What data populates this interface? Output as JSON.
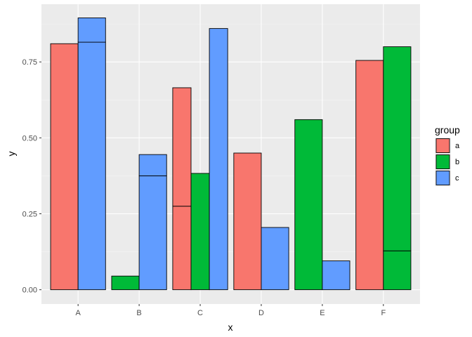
{
  "chart_data": {
    "type": "bar",
    "position": "dodge",
    "categories": [
      "A",
      "B",
      "C",
      "D",
      "E",
      "F"
    ],
    "xlabel": "x",
    "ylabel": "y",
    "ylim": [
      -0.0,
      0.94
    ],
    "yticks": [
      0.0,
      0.25,
      0.5,
      0.75
    ],
    "ytick_labels": [
      "0.00",
      "0.25",
      "0.50",
      "0.75"
    ],
    "grid": true,
    "legend": {
      "title": "group",
      "placement": "right",
      "entries": [
        {
          "label": "a",
          "color": "#F8766D"
        },
        {
          "label": "b",
          "color": "#00BA38"
        },
        {
          "label": "c",
          "color": "#619CFF"
        }
      ]
    },
    "bars": [
      {
        "category": "A",
        "groups_present": [
          "a",
          "c"
        ],
        "group": "a",
        "segments": [
          0.81
        ]
      },
      {
        "category": "A",
        "groups_present": [
          "a",
          "c"
        ],
        "group": "c",
        "segments": [
          0.815,
          0.08
        ]
      },
      {
        "category": "B",
        "groups_present": [
          "b",
          "c"
        ],
        "group": "b",
        "segments": [
          0.045
        ]
      },
      {
        "category": "B",
        "groups_present": [
          "b",
          "c"
        ],
        "group": "c",
        "segments": [
          0.375,
          0.07
        ]
      },
      {
        "category": "C",
        "groups_present": [
          "a",
          "b",
          "c"
        ],
        "group": "a",
        "segments": [
          0.275,
          0.39
        ]
      },
      {
        "category": "C",
        "groups_present": [
          "a",
          "b",
          "c"
        ],
        "group": "b",
        "segments": [
          0.383
        ]
      },
      {
        "category": "C",
        "groups_present": [
          "a",
          "b",
          "c"
        ],
        "group": "c",
        "segments": [
          0.86
        ]
      },
      {
        "category": "D",
        "groups_present": [
          "a",
          "c"
        ],
        "group": "a",
        "segments": [
          0.45
        ]
      },
      {
        "category": "D",
        "groups_present": [
          "a",
          "c"
        ],
        "group": "c",
        "segments": [
          0.205
        ]
      },
      {
        "category": "E",
        "groups_present": [
          "b",
          "c"
        ],
        "group": "b",
        "segments": [
          0.56
        ]
      },
      {
        "category": "E",
        "groups_present": [
          "b",
          "c"
        ],
        "group": "c",
        "segments": [
          0.095
        ]
      },
      {
        "category": "F",
        "groups_present": [
          "a",
          "b"
        ],
        "group": "a",
        "segments": [
          0.755
        ]
      },
      {
        "category": "F",
        "groups_present": [
          "a",
          "b"
        ],
        "group": "b",
        "segments": [
          0.128,
          0.672
        ]
      }
    ],
    "colors": {
      "panel_background": "#EBEBEB",
      "grid_major": "#FFFFFF",
      "bar_outline": "#000000"
    }
  }
}
